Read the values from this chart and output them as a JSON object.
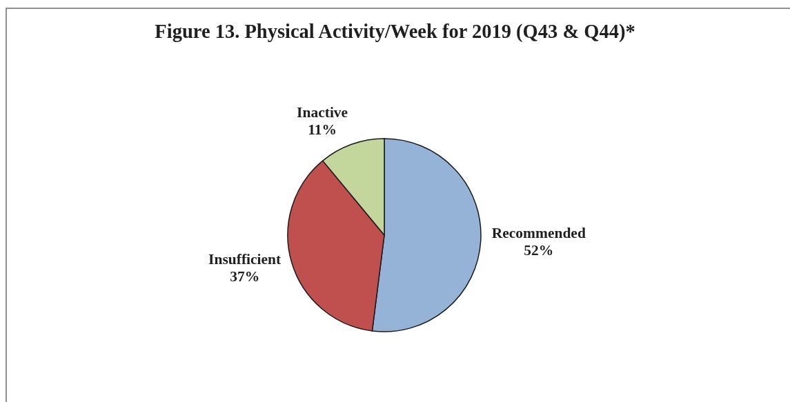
{
  "chart_data": {
    "type": "pie",
    "title": "Figure 13. Physical Activity/Week for 2019 (Q43 & Q44)*",
    "categories": [
      "Recommended",
      "Insufficient",
      "Inactive"
    ],
    "values": [
      52,
      37,
      11
    ],
    "colors": [
      "#95b3d7",
      "#c0504d",
      "#c3d69b"
    ],
    "value_labels": [
      "52%",
      "37%",
      "11%"
    ]
  }
}
